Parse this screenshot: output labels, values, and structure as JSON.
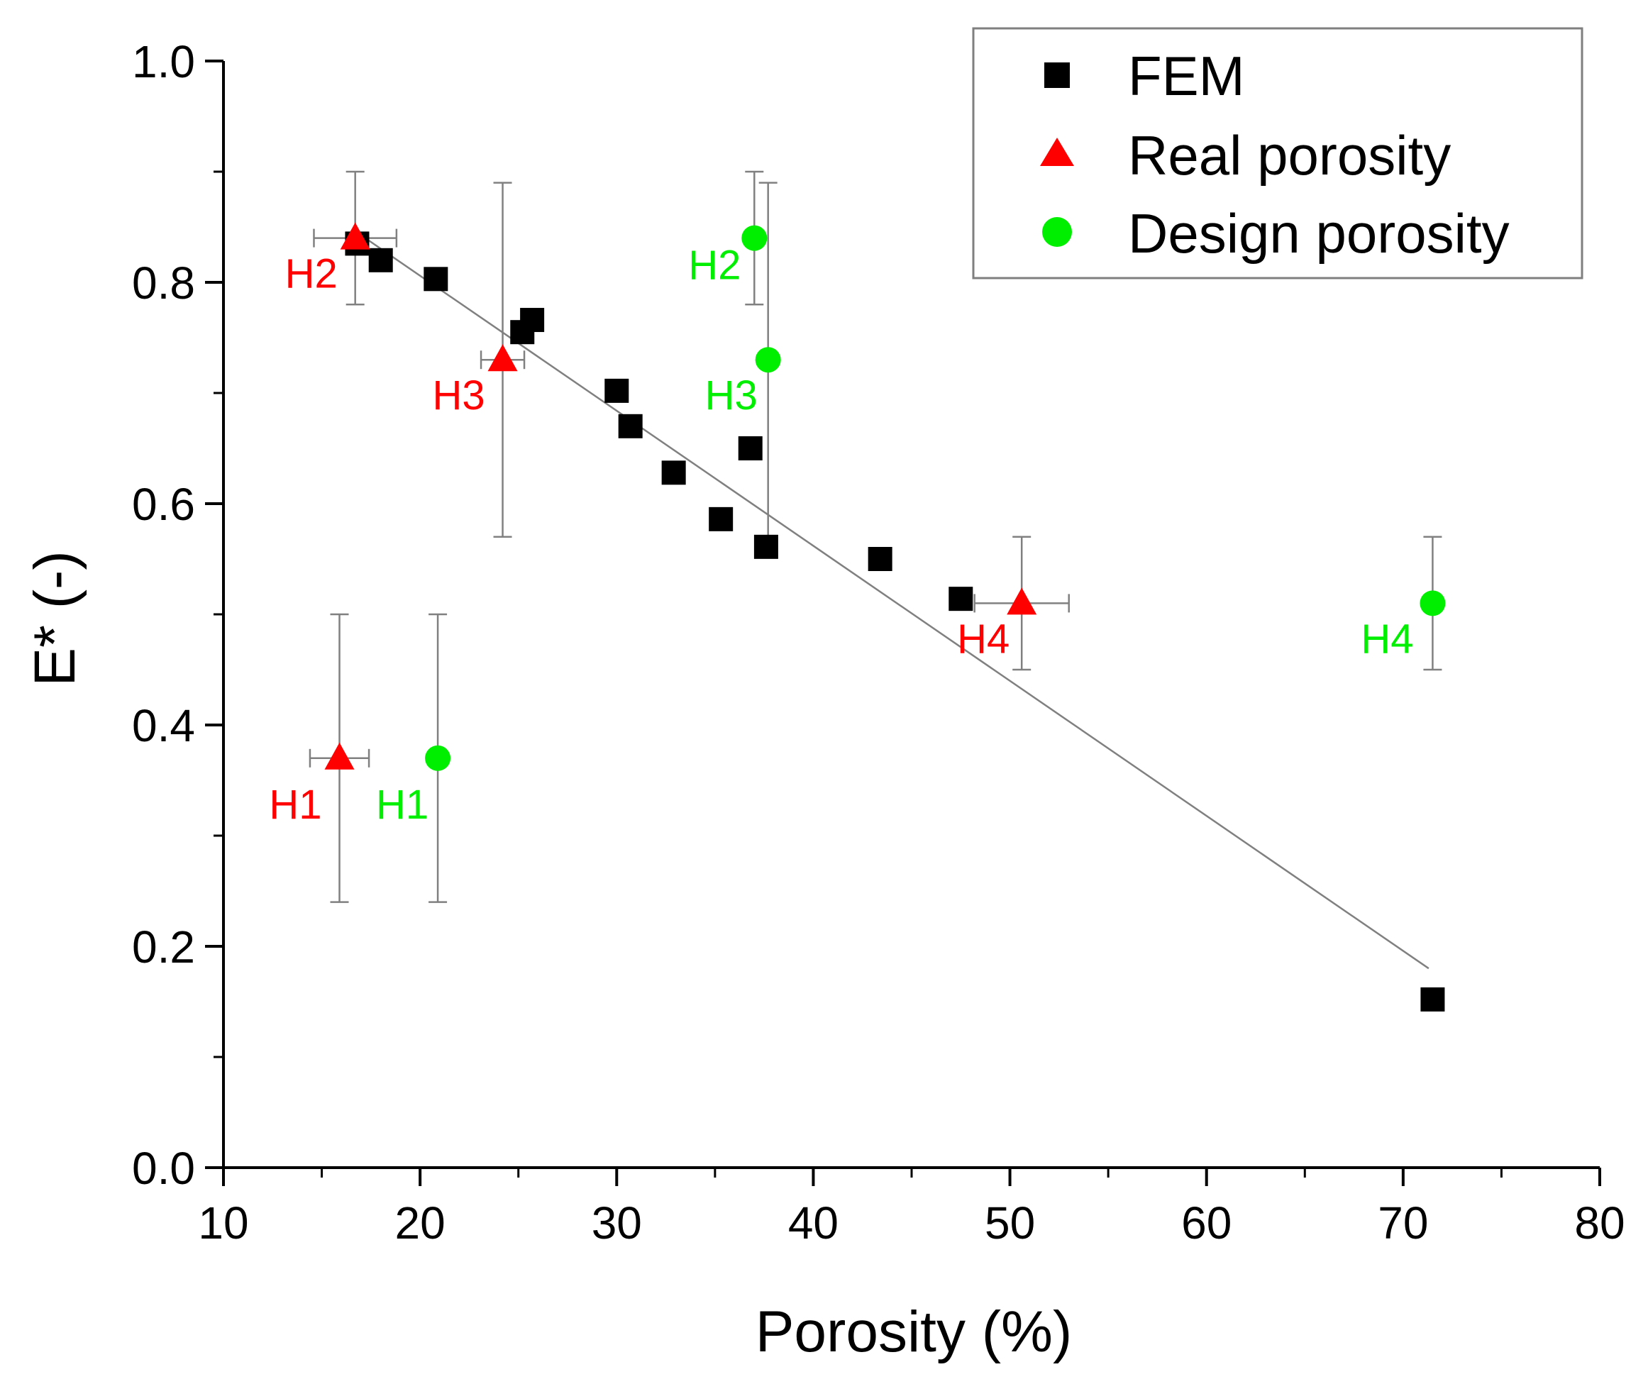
{
  "chart_data": {
    "type": "scatter",
    "title": "",
    "xlabel": "Porosity (%)",
    "ylabel": "E* (-)",
    "xlim": [
      10,
      80
    ],
    "ylim": [
      0.0,
      1.0
    ],
    "x_ticks": [
      10,
      20,
      30,
      40,
      50,
      60,
      70,
      80
    ],
    "y_ticks": [
      0.0,
      0.2,
      0.4,
      0.6,
      0.8,
      1.0
    ],
    "x_tick_labels": [
      "10",
      "20",
      "30",
      "40",
      "50",
      "60",
      "70",
      "80"
    ],
    "y_tick_labels": [
      "0.0",
      "0.2",
      "0.4",
      "0.6",
      "0.8",
      "1.0"
    ],
    "grid": false,
    "legend_position": "top-right",
    "colors": {
      "fem": "#000000",
      "real": "#ff0000",
      "design": "#00ee00",
      "error_bar": "#808080",
      "fit_line": "#808080",
      "axis": "#000000"
    },
    "series": [
      {
        "name": "FEM",
        "marker": "square",
        "points": [
          {
            "x": 16.8,
            "y": 0.835
          },
          {
            "x": 18.0,
            "y": 0.82
          },
          {
            "x": 20.8,
            "y": 0.803
          },
          {
            "x": 25.2,
            "y": 0.755
          },
          {
            "x": 25.7,
            "y": 0.766
          },
          {
            "x": 30.0,
            "y": 0.702
          },
          {
            "x": 30.7,
            "y": 0.67
          },
          {
            "x": 32.9,
            "y": 0.628
          },
          {
            "x": 35.3,
            "y": 0.586
          },
          {
            "x": 36.8,
            "y": 0.65
          },
          {
            "x": 37.6,
            "y": 0.561
          },
          {
            "x": 43.4,
            "y": 0.55
          },
          {
            "x": 47.5,
            "y": 0.514
          },
          {
            "x": 71.5,
            "y": 0.152
          }
        ]
      },
      {
        "name": "Real porosity",
        "marker": "triangle",
        "points": [
          {
            "label": "H1",
            "x": 15.9,
            "y": 0.37,
            "x_err": [
              14.4,
              17.4
            ],
            "y_err": [
              0.24,
              0.5
            ]
          },
          {
            "label": "H2",
            "x": 16.7,
            "y": 0.84,
            "x_err": [
              14.6,
              18.8
            ],
            "y_err": [
              0.78,
              0.9
            ]
          },
          {
            "label": "H3",
            "x": 24.2,
            "y": 0.73,
            "x_err": [
              23.1,
              25.3
            ],
            "y_err": [
              0.57,
              0.89
            ]
          },
          {
            "label": "H4",
            "x": 50.6,
            "y": 0.51,
            "x_err": [
              48.2,
              53.0
            ],
            "y_err": [
              0.45,
              0.57
            ]
          }
        ]
      },
      {
        "name": "Design porosity",
        "marker": "circle",
        "points": [
          {
            "label": "H1",
            "x": 20.9,
            "y": 0.37,
            "y_err": [
              0.24,
              0.5
            ]
          },
          {
            "label": "H2",
            "x": 37.0,
            "y": 0.84,
            "y_err": [
              0.78,
              0.9
            ]
          },
          {
            "label": "H3",
            "x": 37.7,
            "y": 0.73,
            "y_err": [
              0.57,
              0.89
            ]
          },
          {
            "label": "H4",
            "x": 71.5,
            "y": 0.51,
            "y_err": [
              0.45,
              0.57
            ]
          }
        ]
      }
    ],
    "fit_line": {
      "name": "FEM linear fit",
      "x": [
        16.8,
        71.3
      ],
      "y": [
        0.845,
        0.18
      ]
    }
  }
}
